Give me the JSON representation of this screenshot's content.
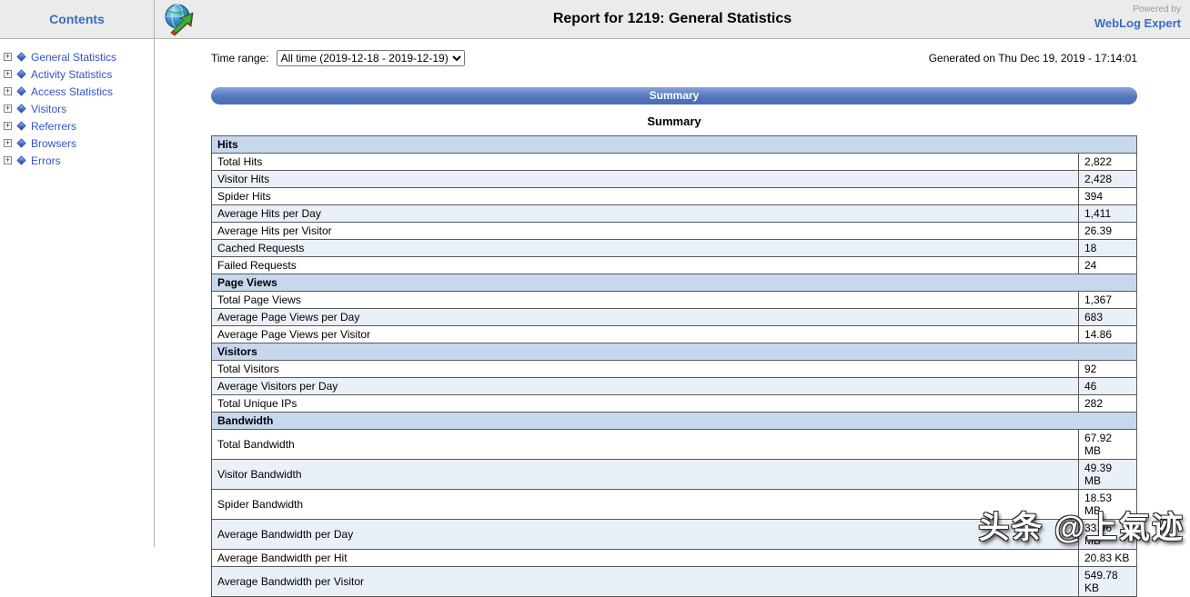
{
  "header": {
    "title": "Report for 1219: General Statistics",
    "powered_by": "Powered by",
    "brand": "WebLog Expert"
  },
  "sidebar": {
    "title": "Contents",
    "items": [
      {
        "label": "General Statistics"
      },
      {
        "label": "Activity Statistics"
      },
      {
        "label": "Access Statistics"
      },
      {
        "label": "Visitors"
      },
      {
        "label": "Referrers"
      },
      {
        "label": "Browsers"
      },
      {
        "label": "Errors"
      }
    ]
  },
  "toolbar": {
    "time_range_label": "Time range:",
    "time_range_value": "All time (2019-12-18 - 2019-12-19)",
    "generated": "Generated on Thu Dec 19, 2019 - 17:14:01"
  },
  "summary": {
    "banner": "Summary",
    "heading": "Summary"
  },
  "table": {
    "sections": [
      {
        "title": "Hits",
        "rows": [
          {
            "label": "Total Hits",
            "value": "2,822"
          },
          {
            "label": "Visitor Hits",
            "value": "2,428"
          },
          {
            "label": "Spider Hits",
            "value": "394"
          },
          {
            "label": "Average Hits per Day",
            "value": "1,411"
          },
          {
            "label": "Average Hits per Visitor",
            "value": "26.39"
          },
          {
            "label": "Cached Requests",
            "value": "18"
          },
          {
            "label": "Failed Requests",
            "value": "24"
          }
        ]
      },
      {
        "title": "Page Views",
        "rows": [
          {
            "label": "Total Page Views",
            "value": "1,367"
          },
          {
            "label": "Average Page Views per Day",
            "value": "683"
          },
          {
            "label": "Average Page Views per Visitor",
            "value": "14.86"
          }
        ]
      },
      {
        "title": "Visitors",
        "rows": [
          {
            "label": "Total Visitors",
            "value": "92"
          },
          {
            "label": "Average Visitors per Day",
            "value": "46"
          },
          {
            "label": "Total Unique IPs",
            "value": "282"
          }
        ]
      },
      {
        "title": "Bandwidth",
        "rows": [
          {
            "label": "Total Bandwidth",
            "value": "67.92 MB"
          },
          {
            "label": "Visitor Bandwidth",
            "value": "49.39 MB"
          },
          {
            "label": "Spider Bandwidth",
            "value": "18.53 MB"
          },
          {
            "label": "Average Bandwidth per Day",
            "value": "33.96 MB"
          },
          {
            "label": "Average Bandwidth per Hit",
            "value": "20.83 KB"
          },
          {
            "label": "Average Bandwidth per Visitor",
            "value": "549.78 KB"
          }
        ]
      }
    ]
  },
  "watermark": "头条 @上氣迹",
  "colors": {
    "accent_blue": "#3a6bc6",
    "banner_blue": "#4d72ba",
    "section_header_bg": "#c7d7ee",
    "shaded_row_bg": "#eaf0f8",
    "topbar_bg": "#ebebeb"
  }
}
